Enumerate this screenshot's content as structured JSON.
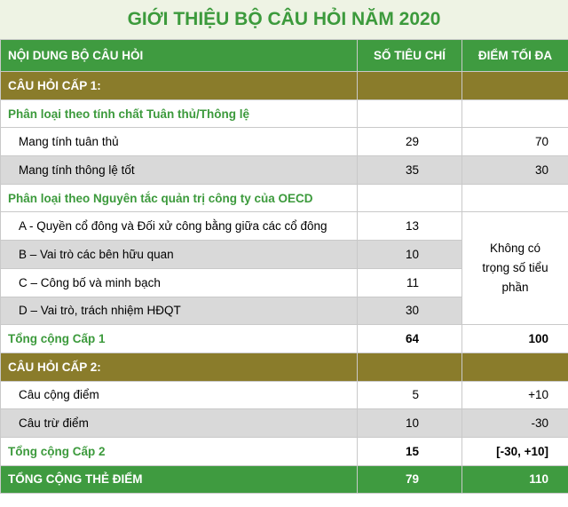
{
  "title": "GIỚI THIỆU BỘ CÂU HỎI NĂM 2020",
  "header": [
    "NỘI DUNG BỘ CÂU HỎI",
    "SỐ TIÊU CHÍ",
    "ĐIỂM TỐI ĐA"
  ],
  "rows": [
    [
      "CÂU HỎI CẤP 1:"
    ],
    [
      "Phân loại theo tính chất Tuân thủ/Thông lệ"
    ],
    [
      "Mang tính tuân thủ",
      29,
      70
    ],
    [
      "Mang tính thông lệ tốt",
      35,
      30
    ],
    [
      "Phân loại theo Nguyên tắc quản trị công ty của OECD"
    ],
    [
      "A - Quyền cổ đông và Đối xử công bằng giữa các cổ đông",
      13
    ],
    [
      "B – Vai trò các bên hữu quan",
      10
    ],
    [
      "C – Công bố và minh bạch",
      11
    ],
    [
      "D – Vai trò, trách nhiệm HĐQT",
      30
    ],
    [
      "Tổng cộng Cấp 1",
      64,
      100
    ],
    [
      "CÂU HỎI CẤP 2:"
    ],
    [
      "Câu cộng điểm",
      5,
      "+10"
    ],
    [
      "Câu trừ điểm",
      10,
      -30
    ],
    [
      "Tổng cộng Cấp 2",
      15,
      "[-30, +10]"
    ],
    [
      "TỔNG CỘNG THẺ ĐIỂM",
      79,
      110
    ]
  ],
  "merged_note": "Không có trọng số tiểu phần"
}
